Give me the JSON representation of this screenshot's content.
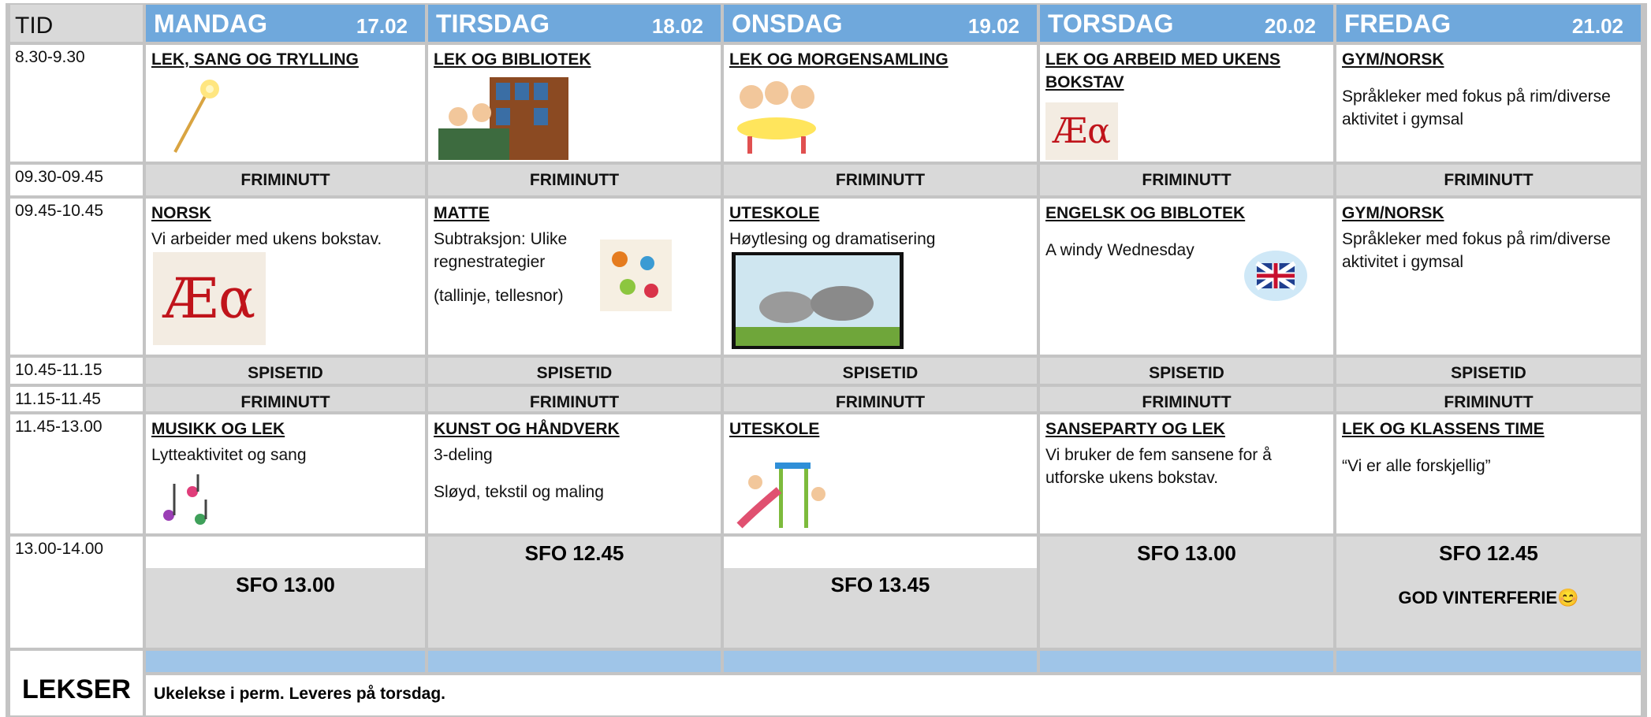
{
  "header": {
    "tid": "TID",
    "days": [
      {
        "name": "MANDAG",
        "date": "17.02"
      },
      {
        "name": "TIRSDAG",
        "date": "18.02"
      },
      {
        "name": "ONSDAG",
        "date": "19.02"
      },
      {
        "name": "TORSDAG",
        "date": "20.02"
      },
      {
        "name": "FREDAG",
        "date": "21.02"
      }
    ]
  },
  "rows": [
    {
      "time": "8.30-9.30",
      "cells": [
        {
          "title": "LEK, SANG OG TRYLLING",
          "lines": []
        },
        {
          "title": "LEK OG BIBLIOTEK",
          "lines": []
        },
        {
          "title": "LEK OG MORGENSAMLING",
          "lines": []
        },
        {
          "title": "LEK OG ARBEID MED UKENS BOKSTAV",
          "lines": [],
          "picture_text": "Æα"
        },
        {
          "title": "GYM/NORSK",
          "lines": [
            "Språkleker med fokus på rim/diverse aktivitet i gymsal"
          ]
        }
      ]
    },
    {
      "time": "09.30-09.45",
      "cells": [
        "FRIMINUTT",
        "FRIMINUTT",
        "FRIMINUTT",
        "FRIMINUTT",
        "FRIMINUTT"
      ]
    },
    {
      "time": "09.45-10.45",
      "cells": [
        {
          "title": "NORSK",
          "lines": [
            "Vi arbeider med ukens bokstav."
          ],
          "picture_text": "Æα"
        },
        {
          "title": "MATTE",
          "lines": [
            "Subtraksjon: Ulike regnestrategier",
            "(tallinje, tellesnor)"
          ]
        },
        {
          "title": "UTESKOLE",
          "lines": [
            "Høytlesing og dramatisering"
          ]
        },
        {
          "title": "ENGELSK OG BIBLOTEK",
          "lines": [
            "A windy Wednesday"
          ]
        },
        {
          "title": "GYM/NORSK",
          "lines": [
            "Språkleker med fokus på rim/diverse aktivitet i gymsal"
          ]
        }
      ]
    },
    {
      "time": "10.45-11.15",
      "cells": [
        "SPISETID",
        "SPISETID",
        "SPISETID",
        "SPISETID",
        "SPISETID"
      ]
    },
    {
      "time": "11.15-11.45",
      "cells": [
        "FRIMINUTT",
        "FRIMINUTT",
        "FRIMINUTT",
        "FRIMINUTT",
        "FRIMINUTT"
      ]
    },
    {
      "time": "11.45-13.00",
      "cells": [
        {
          "title": "MUSIKK OG LEK",
          "lines": [
            "Lytteaktivitet og sang"
          ]
        },
        {
          "title": "KUNST OG HÅNDVERK",
          "lines": [
            "3-deling",
            "Sløyd, tekstil og maling"
          ]
        },
        {
          "title": "UTESKOLE",
          "lines": []
        },
        {
          "title": "SANSEPARTY OG LEK",
          "lines": [
            "Vi bruker de fem sansene for å utforske ukens bokstav."
          ]
        },
        {
          "title": "LEK OG KLASSENS TIME",
          "lines": [
            "“Vi er alle forskjellig”"
          ]
        }
      ]
    },
    {
      "time": "13.00-14.00",
      "cells": [
        {
          "text": "SFO 13.00"
        },
        {
          "text": "SFO 12.45"
        },
        {
          "text": "SFO 13.45"
        },
        {
          "text": "SFO 13.00"
        },
        {
          "text": "SFO 12.45",
          "note": "GOD VINTERFERIE😊"
        }
      ]
    }
  ],
  "footer": {
    "label": "LEKSER",
    "text": "Ukelekse i perm. Leveres på torsdag."
  }
}
